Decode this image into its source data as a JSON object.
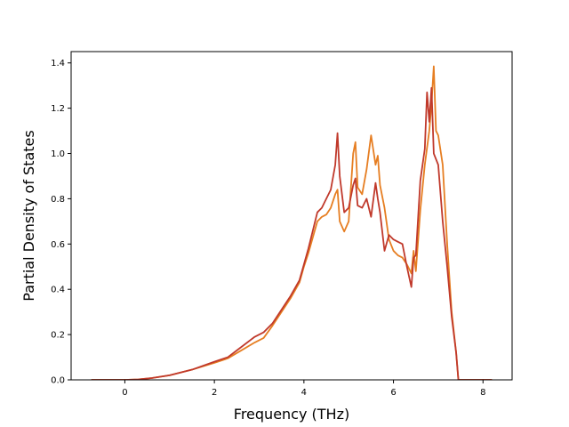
{
  "chart_data": {
    "type": "line",
    "title": "",
    "xlabel": "Frequency (THz)",
    "ylabel": "Partial Density of States",
    "xlim": [
      -1.2,
      8.65
    ],
    "ylim": [
      0.0,
      1.45
    ],
    "xticks": [
      0,
      2,
      4,
      6,
      8
    ],
    "yticks": [
      0.0,
      0.2,
      0.4,
      0.6,
      0.8,
      1.0,
      1.2,
      1.4
    ],
    "grid": false,
    "legend": "none",
    "series": [
      {
        "color": "#e67e22",
        "points": [
          [
            -0.75,
            0.0
          ],
          [
            0.0,
            0.0
          ],
          [
            0.3,
            0.002
          ],
          [
            0.6,
            0.008
          ],
          [
            1.0,
            0.02
          ],
          [
            1.5,
            0.045
          ],
          [
            2.0,
            0.075
          ],
          [
            2.3,
            0.095
          ],
          [
            2.6,
            0.13
          ],
          [
            2.9,
            0.165
          ],
          [
            3.1,
            0.185
          ],
          [
            3.3,
            0.24
          ],
          [
            3.5,
            0.3
          ],
          [
            3.7,
            0.36
          ],
          [
            3.9,
            0.43
          ],
          [
            4.0,
            0.5
          ],
          [
            4.1,
            0.56
          ],
          [
            4.2,
            0.63
          ],
          [
            4.3,
            0.7
          ],
          [
            4.4,
            0.72
          ],
          [
            4.5,
            0.73
          ],
          [
            4.6,
            0.76
          ],
          [
            4.7,
            0.82
          ],
          [
            4.75,
            0.84
          ],
          [
            4.8,
            0.7
          ],
          [
            4.9,
            0.655
          ],
          [
            5.0,
            0.7
          ],
          [
            5.1,
            1.0
          ],
          [
            5.15,
            1.05
          ],
          [
            5.2,
            0.85
          ],
          [
            5.3,
            0.82
          ],
          [
            5.4,
            0.93
          ],
          [
            5.5,
            1.08
          ],
          [
            5.6,
            0.95
          ],
          [
            5.65,
            0.99
          ],
          [
            5.7,
            0.86
          ],
          [
            5.8,
            0.76
          ],
          [
            5.9,
            0.62
          ],
          [
            6.0,
            0.57
          ],
          [
            6.1,
            0.55
          ],
          [
            6.2,
            0.54
          ],
          [
            6.3,
            0.51
          ],
          [
            6.4,
            0.47
          ],
          [
            6.45,
            0.57
          ],
          [
            6.5,
            0.48
          ],
          [
            6.6,
            0.75
          ],
          [
            6.7,
            0.95
          ],
          [
            6.8,
            1.1
          ],
          [
            6.85,
            1.22
          ],
          [
            6.9,
            1.385
          ],
          [
            6.95,
            1.1
          ],
          [
            7.0,
            1.08
          ],
          [
            7.1,
            0.95
          ],
          [
            7.2,
            0.6
          ],
          [
            7.3,
            0.3
          ],
          [
            7.4,
            0.12
          ],
          [
            7.45,
            0.0
          ],
          [
            8.2,
            0.0
          ]
        ]
      },
      {
        "color": "#c0392b",
        "points": [
          [
            -0.75,
            0.0
          ],
          [
            0.0,
            0.0
          ],
          [
            0.3,
            0.002
          ],
          [
            0.6,
            0.008
          ],
          [
            1.0,
            0.02
          ],
          [
            1.5,
            0.045
          ],
          [
            2.0,
            0.08
          ],
          [
            2.3,
            0.1
          ],
          [
            2.6,
            0.145
          ],
          [
            2.9,
            0.19
          ],
          [
            3.1,
            0.21
          ],
          [
            3.3,
            0.25
          ],
          [
            3.5,
            0.31
          ],
          [
            3.7,
            0.37
          ],
          [
            3.9,
            0.44
          ],
          [
            4.0,
            0.51
          ],
          [
            4.1,
            0.58
          ],
          [
            4.2,
            0.66
          ],
          [
            4.3,
            0.74
          ],
          [
            4.4,
            0.76
          ],
          [
            4.5,
            0.8
          ],
          [
            4.6,
            0.84
          ],
          [
            4.7,
            0.95
          ],
          [
            4.75,
            1.09
          ],
          [
            4.8,
            0.9
          ],
          [
            4.9,
            0.74
          ],
          [
            5.0,
            0.76
          ],
          [
            5.1,
            0.86
          ],
          [
            5.15,
            0.89
          ],
          [
            5.2,
            0.77
          ],
          [
            5.3,
            0.76
          ],
          [
            5.4,
            0.8
          ],
          [
            5.5,
            0.72
          ],
          [
            5.6,
            0.87
          ],
          [
            5.65,
            0.8
          ],
          [
            5.7,
            0.74
          ],
          [
            5.8,
            0.57
          ],
          [
            5.9,
            0.64
          ],
          [
            6.0,
            0.62
          ],
          [
            6.1,
            0.61
          ],
          [
            6.2,
            0.6
          ],
          [
            6.3,
            0.5
          ],
          [
            6.4,
            0.41
          ],
          [
            6.45,
            0.54
          ],
          [
            6.5,
            0.55
          ],
          [
            6.6,
            0.88
          ],
          [
            6.7,
            1.02
          ],
          [
            6.75,
            1.27
          ],
          [
            6.8,
            1.14
          ],
          [
            6.85,
            1.29
          ],
          [
            6.9,
            1.0
          ],
          [
            7.0,
            0.95
          ],
          [
            7.1,
            0.7
          ],
          [
            7.2,
            0.5
          ],
          [
            7.3,
            0.28
          ],
          [
            7.4,
            0.12
          ],
          [
            7.45,
            0.0
          ],
          [
            8.2,
            0.0
          ]
        ]
      }
    ]
  }
}
